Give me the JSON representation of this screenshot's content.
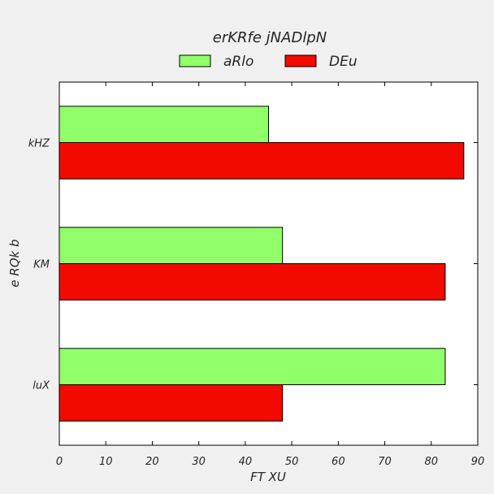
{
  "chart_data": {
    "type": "bar",
    "orientation": "horizontal",
    "title": "erKRfe jNADlpN",
    "xlabel": "FT XU",
    "ylabel": "e RQk b",
    "categories": [
      "luX",
      "KM",
      "kHZ"
    ],
    "series": [
      {
        "name": "aRlo",
        "color": "#90ff69",
        "values": [
          83,
          48,
          45
        ]
      },
      {
        "name": "DEu",
        "color": "#f20a00",
        "values": [
          48,
          83,
          87
        ]
      }
    ],
    "xlim": [
      0,
      90
    ],
    "xticks": [
      0,
      10,
      20,
      30,
      40,
      50,
      60,
      70,
      80,
      90
    ],
    "grid": false,
    "legend_position": "top-center"
  }
}
